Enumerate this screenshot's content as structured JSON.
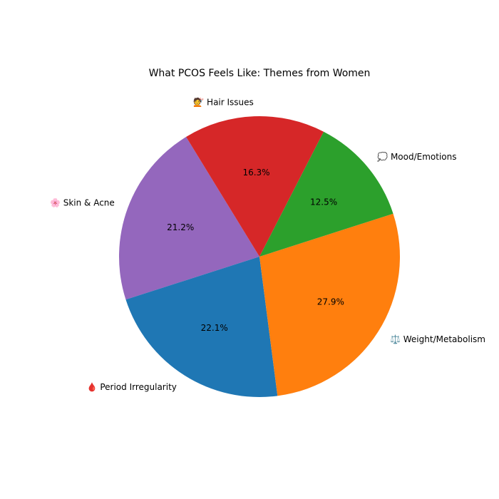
{
  "chart_data": {
    "type": "pie",
    "title": "What PCOS Feels Like: Themes from Women",
    "slices": [
      {
        "label": "🌸 Skin & Acne",
        "value": 21.2,
        "pct_label": "21.2%",
        "color": "#9467bd"
      },
      {
        "label": "🩸 Period Irregularity",
        "value": 22.1,
        "pct_label": "22.1%",
        "color": "#1f77b4"
      },
      {
        "label": "⚖️ Weight/Metabolism",
        "value": 27.9,
        "pct_label": "27.9%",
        "color": "#ff7f0e"
      },
      {
        "label": "💭 Mood/Emotions",
        "value": 12.5,
        "pct_label": "12.5%",
        "color": "#2ca02c"
      },
      {
        "label": "💇 Hair Issues",
        "value": 16.3,
        "pct_label": "16.3%",
        "color": "#d62728"
      }
    ]
  }
}
